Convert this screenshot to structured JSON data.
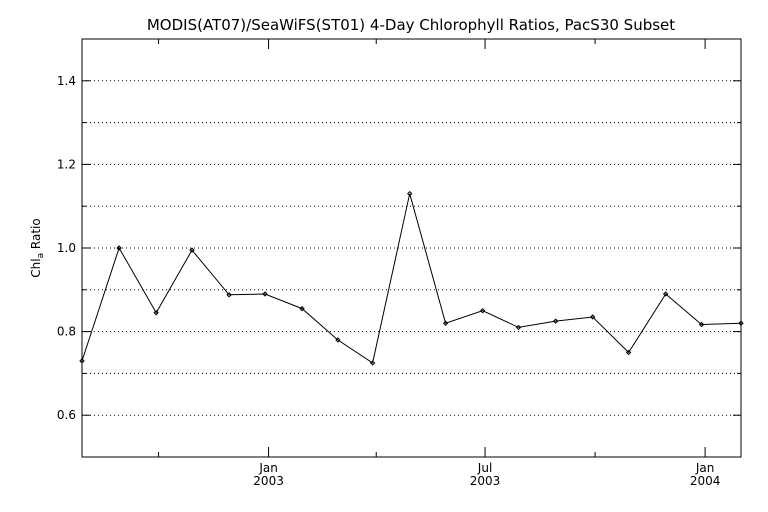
{
  "chart_data": {
    "type": "line",
    "title": "MODIS(AT07)/SeaWiFS(ST01) 4-Day Chlorophyll Ratios, PacS30 Subset",
    "ylabel_main": "Chl",
    "ylabel_sub": "a",
    "ylabel_rest": " Ratio",
    "xlabel": "",
    "ylim": [
      0.5,
      1.5
    ],
    "xlim": [
      "2002-07-29",
      "2004-01-31"
    ],
    "y_ticks": [
      {
        "value": 0.6,
        "label": "0.6"
      },
      {
        "value": 0.8,
        "label": "0.8"
      },
      {
        "value": 1.0,
        "label": "1.0"
      },
      {
        "value": 1.2,
        "label": "1.2"
      },
      {
        "value": 1.4,
        "label": "1.4"
      }
    ],
    "y_minor_ticks": [
      0.7,
      0.9,
      1.1,
      1.3,
      1.5
    ],
    "x_major_ticks": [
      {
        "date": "2003-01-01",
        "label1": "Jan",
        "label2": "2003"
      },
      {
        "date": "2003-07-01",
        "label1": "Jul",
        "label2": "2003"
      },
      {
        "date": "2004-01-01",
        "label1": "Jan",
        "label2": "2004"
      }
    ],
    "x_minor_ticks": [
      "2002-10-01",
      "2003-04-01",
      "2003-10-01"
    ],
    "grid": "horizontal dotted",
    "series": [
      {
        "x": [
          "2002-07-29",
          "2002-08-29",
          "2002-09-29",
          "2002-10-29",
          "2002-11-29",
          "2002-12-29",
          "2003-01-29",
          "2003-02-28",
          "2003-03-29",
          "2003-04-29",
          "2003-05-29",
          "2003-06-29",
          "2003-07-29",
          "2003-08-29",
          "2003-09-29",
          "2003-10-29",
          "2003-11-29",
          "2003-12-29",
          "2004-01-31"
        ],
        "y": [
          0.73,
          1.0,
          0.845,
          0.995,
          0.888,
          0.89,
          0.855,
          0.78,
          0.725,
          1.13,
          0.82,
          0.85,
          0.81,
          0.825,
          0.835,
          0.75,
          0.89,
          0.817,
          0.82
        ]
      }
    ]
  }
}
